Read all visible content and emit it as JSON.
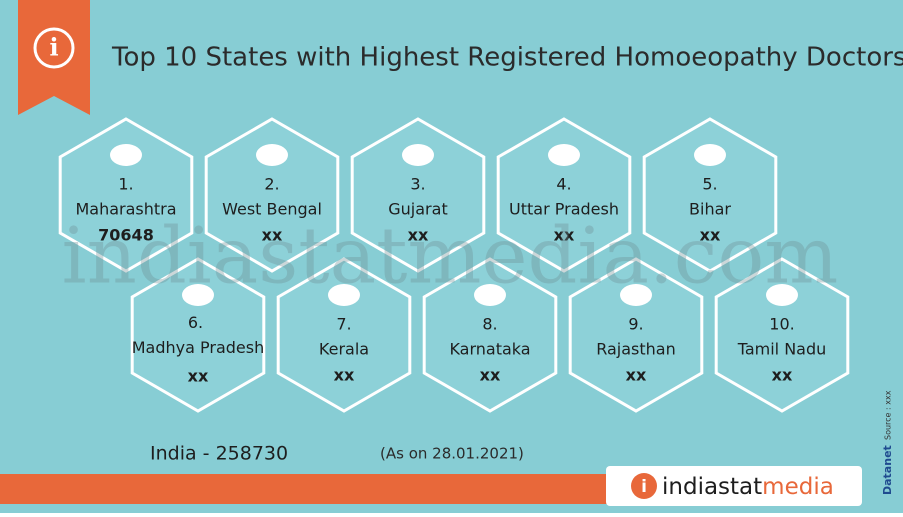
{
  "header": {
    "title": "Top 10 States with Highest Registered Homoeopathy Doctors"
  },
  "states": [
    {
      "rank": "1.",
      "name": "Maharashtra",
      "value": 70648
    },
    {
      "rank": "2.",
      "name": "West Bengal",
      "value": "xx"
    },
    {
      "rank": "3.",
      "name": "Gujarat",
      "value": "xx"
    },
    {
      "rank": "4.",
      "name": "Uttar Pradesh",
      "value": "xx"
    },
    {
      "rank": "5.",
      "name": "Bihar",
      "value": "xx"
    },
    {
      "rank": "6.",
      "name": "Madhya Pradesh",
      "value": "xx"
    },
    {
      "rank": "7.",
      "name": "Kerala",
      "value": "xx"
    },
    {
      "rank": "8.",
      "name": "Karnataka",
      "value": "xx"
    },
    {
      "rank": "9.",
      "name": "Rajasthan",
      "value": "xx"
    },
    {
      "rank": "10.",
      "name": "Tamil Nadu",
      "value": "xx"
    }
  ],
  "footer": {
    "total": "India - 258730",
    "date_note": "(As on 28.01.2021)",
    "logo_main": "indiastat",
    "logo_accent": "media",
    "brand": "Datanet",
    "source": "Source : xxx"
  },
  "watermark": "indiastatmedia.com"
}
